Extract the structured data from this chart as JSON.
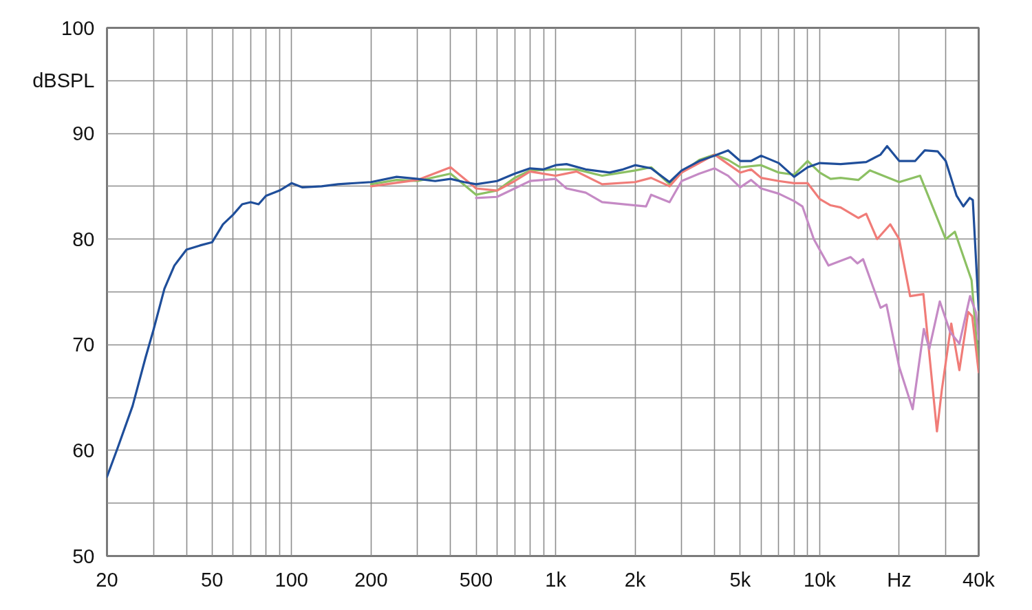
{
  "chart_data": {
    "type": "line",
    "log": "x",
    "grid": true,
    "line_style": "solid",
    "marker": "none",
    "xlim": [
      20,
      40000
    ],
    "ylim": [
      50,
      100
    ],
    "xticks": [
      20,
      {
        "value": 30,
        "label": null
      },
      {
        "value": 40,
        "label": null
      },
      50,
      {
        "value": 60,
        "label": null
      },
      {
        "value": 70,
        "label": null
      },
      {
        "value": 80,
        "label": null
      },
      {
        "value": 90,
        "label": null
      },
      100,
      200,
      {
        "value": 300,
        "label": null
      },
      {
        "value": 400,
        "label": null
      },
      500,
      {
        "value": 600,
        "label": null
      },
      {
        "value": 700,
        "label": null
      },
      {
        "value": 800,
        "label": null
      },
      {
        "value": 900,
        "label": null
      },
      {
        "value": 1000,
        "label": "1k"
      },
      {
        "value": 2000,
        "label": "2k"
      },
      {
        "value": 3000,
        "label": null
      },
      {
        "value": 4000,
        "label": null
      },
      {
        "value": 5000,
        "label": "5k"
      },
      {
        "value": 6000,
        "label": null
      },
      {
        "value": 7000,
        "label": null
      },
      {
        "value": 8000,
        "label": null
      },
      {
        "value": 9000,
        "label": null
      },
      {
        "value": 10000,
        "label": "10k"
      },
      {
        "value": 20000,
        "label": "Hz"
      },
      {
        "value": 30000,
        "label": null
      },
      {
        "value": 40000,
        "label": "40k"
      }
    ],
    "yticks": [
      50,
      {
        "value": 55,
        "label": null
      },
      60,
      {
        "value": 65,
        "label": null
      },
      70,
      {
        "value": 75,
        "label": null
      },
      80,
      {
        "value": 85,
        "label": null
      },
      90,
      {
        "value": 95,
        "label": "dBSPL"
      },
      100
    ],
    "series": [
      {
        "color": "#8cc063",
        "x": [
          200,
          250,
          300,
          400,
          500,
          600,
          700,
          800,
          1000,
          1200,
          1500,
          2000,
          2300,
          2700,
          3000,
          3500,
          4000,
          4500,
          5000,
          6000,
          7000,
          8000,
          9000,
          10000,
          11000,
          12000,
          14000,
          15500,
          20000,
          24000,
          30000,
          32500,
          37600,
          40000
        ],
        "values": [
          85.2,
          85.6,
          85.5,
          86.2,
          84.2,
          84.6,
          85.8,
          86.5,
          86.6,
          86.6,
          86.0,
          86.5,
          86.8,
          85.2,
          86.3,
          87.5,
          88.0,
          87.5,
          86.8,
          87.0,
          86.3,
          86.1,
          87.4,
          86.3,
          85.7,
          85.8,
          85.6,
          86.5,
          85.4,
          86.0,
          80.0,
          80.7,
          76.1,
          67.9
        ]
      },
      {
        "color": "#f07c78",
        "x": [
          200,
          300,
          400,
          500,
          600,
          700,
          800,
          1000,
          1200,
          1500,
          2000,
          2300,
          2700,
          3000,
          4000,
          5000,
          5500,
          6000,
          7000,
          8000,
          9000,
          10000,
          11000,
          12000,
          14000,
          15000,
          16500,
          18500,
          20000,
          22000,
          24700,
          27800,
          29000,
          31500,
          33800,
          36500,
          37800,
          40000
        ],
        "values": [
          85.0,
          85.6,
          86.8,
          84.8,
          84.6,
          85.5,
          86.4,
          86.0,
          86.4,
          85.2,
          85.4,
          85.8,
          85.0,
          86.3,
          88.0,
          86.3,
          86.6,
          85.8,
          85.5,
          85.3,
          85.3,
          83.8,
          83.2,
          83.0,
          82.0,
          82.4,
          80.0,
          81.4,
          80.0,
          74.6,
          74.8,
          61.8,
          65.7,
          72.0,
          67.6,
          73.1,
          72.7,
          67.4
        ]
      },
      {
        "color": "#c58ac5",
        "x": [
          500,
          600,
          700,
          800,
          900,
          1000,
          1100,
          1300,
          1500,
          2000,
          2200,
          2300,
          2700,
          3000,
          3500,
          4000,
          4500,
          5000,
          5500,
          6000,
          7000,
          8000,
          8600,
          9500,
          10800,
          13100,
          13900,
          14600,
          17000,
          17900,
          20000,
          22500,
          24800,
          26000,
          28500,
          31200,
          33800,
          37100,
          39000,
          40000
        ],
        "values": [
          83.9,
          84.0,
          84.8,
          85.5,
          85.6,
          85.7,
          84.8,
          84.4,
          83.5,
          83.2,
          83.1,
          84.2,
          83.5,
          85.5,
          86.2,
          86.7,
          86.0,
          84.9,
          85.6,
          84.8,
          84.3,
          83.6,
          83.1,
          80.0,
          77.5,
          78.3,
          77.7,
          78.1,
          73.5,
          73.8,
          67.9,
          63.9,
          71.5,
          69.6,
          74.1,
          71.2,
          70.1,
          74.6,
          73.1,
          70.5
        ]
      },
      {
        "color": "#1f4e9a",
        "x": [
          20,
          22,
          25,
          28,
          30,
          33,
          36,
          40,
          45,
          50,
          55,
          60,
          65,
          70,
          75,
          80,
          90,
          100,
          110,
          130,
          150,
          200,
          250,
          300,
          350,
          400,
          450,
          500,
          600,
          700,
          800,
          900,
          1000,
          1100,
          1300,
          1600,
          1800,
          2000,
          2300,
          2700,
          3000,
          3500,
          4000,
          4500,
          5000,
          5500,
          6000,
          7000,
          8000,
          9000,
          10000,
          12000,
          15000,
          17000,
          18000,
          20000,
          23000,
          25000,
          28000,
          30000,
          33000,
          35000,
          37000,
          38000,
          40000
        ],
        "values": [
          57.5,
          60.3,
          64.2,
          68.8,
          71.4,
          75.3,
          77.5,
          79.0,
          79.4,
          79.7,
          81.4,
          82.3,
          83.3,
          83.5,
          83.3,
          84.1,
          84.6,
          85.3,
          84.9,
          85.0,
          85.2,
          85.4,
          85.9,
          85.7,
          85.5,
          85.7,
          85.4,
          85.2,
          85.5,
          86.2,
          86.7,
          86.6,
          87.0,
          87.1,
          86.6,
          86.3,
          86.6,
          87.0,
          86.7,
          85.4,
          86.5,
          87.4,
          87.9,
          88.4,
          87.4,
          87.4,
          87.9,
          87.2,
          85.9,
          86.8,
          87.2,
          87.1,
          87.3,
          88.0,
          88.8,
          87.4,
          87.4,
          88.4,
          88.3,
          87.4,
          84.1,
          83.1,
          83.9,
          83.7,
          73.3
        ]
      }
    ]
  }
}
